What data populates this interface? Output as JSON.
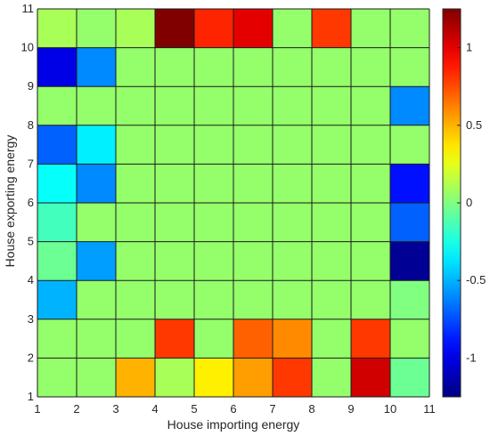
{
  "chart_data": {
    "type": "heatmap",
    "title": "",
    "xlabel": "House importing energy",
    "ylabel": "House exporting energy",
    "x_ticks": [
      "1",
      "2",
      "3",
      "4",
      "5",
      "6",
      "7",
      "8",
      "9",
      "10",
      "11"
    ],
    "y_ticks": [
      "1",
      "2",
      "3",
      "4",
      "5",
      "6",
      "7",
      "8",
      "9",
      "10",
      "11"
    ],
    "xlim": [
      1,
      11
    ],
    "ylim": [
      1,
      11
    ],
    "colormap": "jet",
    "clim": [
      -1.25,
      1.25
    ],
    "colorbar_ticks": [
      "1",
      "0.5",
      "0",
      "-0.5",
      "-1"
    ],
    "colorbar_tick_values": [
      1,
      0.5,
      0,
      -0.5,
      -1
    ],
    "grid": true,
    "row_order": "y=1 (bottom) to y=10 (top); columns x=1..10",
    "values": [
      [
        0.05,
        0.05,
        0.5,
        0.1,
        0.35,
        0.55,
        0.8,
        0.05,
        1.05,
        -0.05
      ],
      [
        0.05,
        0.05,
        0.05,
        0.8,
        0.05,
        0.7,
        0.6,
        0.05,
        0.8,
        0.05
      ],
      [
        -0.5,
        0.05,
        0.05,
        0.05,
        0.05,
        0.05,
        0.05,
        0.05,
        0.05,
        0.0
      ],
      [
        -0.05,
        -0.55,
        0.05,
        0.05,
        0.05,
        0.05,
        0.05,
        0.05,
        0.05,
        -1.2
      ],
      [
        -0.15,
        0.05,
        0.05,
        0.05,
        0.05,
        0.05,
        0.05,
        0.05,
        0.05,
        -0.7
      ],
      [
        -0.3,
        -0.6,
        0.05,
        0.05,
        0.05,
        0.05,
        0.05,
        0.05,
        0.05,
        -0.9
      ],
      [
        -0.7,
        -0.35,
        0.05,
        0.05,
        0.05,
        0.05,
        0.05,
        0.05,
        0.05,
        0.05
      ],
      [
        0.05,
        0.05,
        0.05,
        0.05,
        0.05,
        0.05,
        0.05,
        0.05,
        0.05,
        -0.6
      ],
      [
        -1.0,
        -0.6,
        0.05,
        0.05,
        0.05,
        0.05,
        0.05,
        0.05,
        0.05,
        0.05
      ],
      [
        0.1,
        0.05,
        0.1,
        1.25,
        0.85,
        1.0,
        0.05,
        0.8,
        0.05,
        0.05
      ]
    ]
  }
}
